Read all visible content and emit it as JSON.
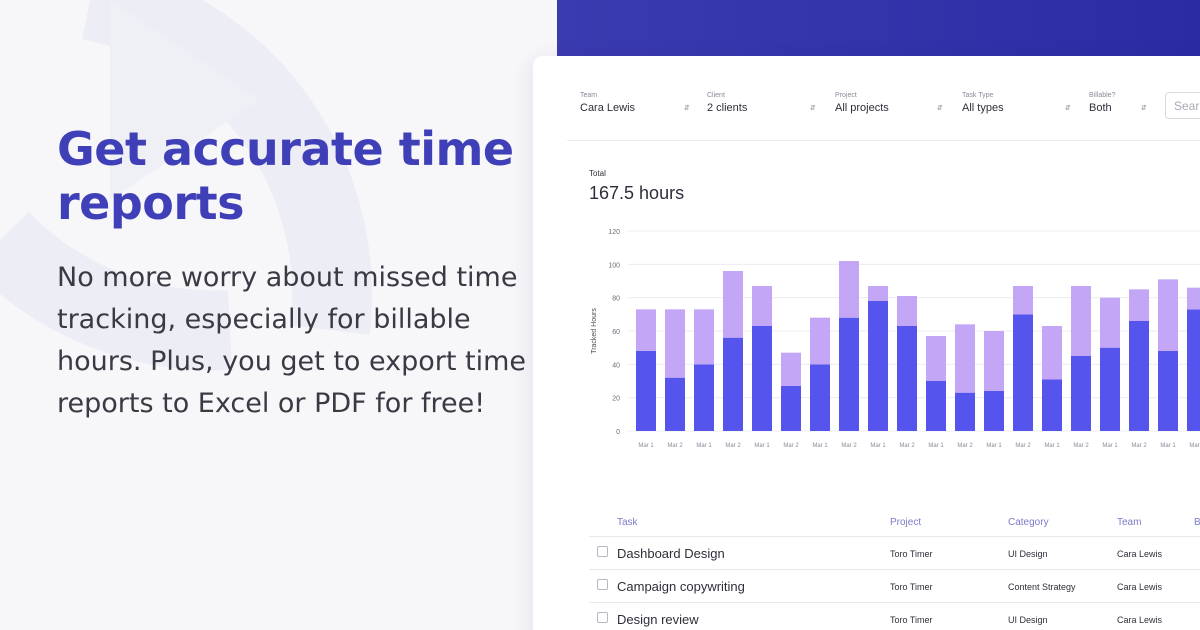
{
  "colors": {
    "accent": "#3f3fb8",
    "band": "#2f2fa8",
    "bar_billable": "#5555ee",
    "bar_nonbillable": "#c3a6f6"
  },
  "hero": {
    "headline": "Get accurate time reports",
    "subtext": "No more worry about missed time tracking, especially for billable hours. Plus, you get to export time reports to Excel or PDF for free!"
  },
  "filters": [
    {
      "label": "Team",
      "value": "Cara Lewis",
      "icon": "select-caret-icon"
    },
    {
      "label": "Client",
      "value": "2 clients",
      "icon": "select-caret-icon"
    },
    {
      "label": "Project",
      "value": "All projects",
      "icon": "select-caret-icon"
    },
    {
      "label": "Task Type",
      "value": "All types",
      "icon": "select-caret-icon"
    },
    {
      "label": "Billable?",
      "value": "Both",
      "icon": "select-caret-icon"
    }
  ],
  "search": {
    "placeholder": "Sear"
  },
  "summary": {
    "label": "Total",
    "value": "167.5 hours"
  },
  "chart_data": {
    "type": "bar",
    "stacked": true,
    "ylabel": "Tracked Hours",
    "xlabel": "",
    "ylim": [
      0,
      120
    ],
    "yticks": [
      0,
      20,
      40,
      60,
      80,
      100,
      120
    ],
    "grid": true,
    "categories": [
      "Mar 1",
      "Mar 2",
      "Mar 1",
      "Mar 2",
      "Mar 1",
      "Mar 2",
      "Mar 1",
      "Mar 2",
      "Mar 1",
      "Mar 2",
      "Mar 1",
      "Mar 2",
      "Mar 1",
      "Mar 2",
      "Mar 1",
      "Mar 2",
      "Mar 1",
      "Mar 2",
      "Mar 1",
      "Mar 2"
    ],
    "series": [
      {
        "color": "#5555ee",
        "values": [
          48,
          32,
          40,
          56,
          63,
          27,
          40,
          68,
          78,
          63,
          30,
          23,
          24,
          70,
          31,
          45,
          50,
          66,
          48,
          73
        ]
      },
      {
        "color": "#c3a6f6",
        "values": [
          25,
          41,
          33,
          40,
          24,
          20,
          28,
          34,
          9,
          18,
          27,
          41,
          36,
          17,
          32,
          42,
          30,
          19,
          43,
          13
        ]
      }
    ]
  },
  "table": {
    "headers": {
      "task": "Task",
      "project": "Project",
      "category": "Category",
      "team": "Team",
      "extra": "B"
    },
    "rows": [
      {
        "task": "Dashboard Design",
        "project": "Toro Timer",
        "category": "UI Design",
        "team": "Cara Lewis"
      },
      {
        "task": "Campaign copywriting",
        "project": "Toro Timer",
        "category": "Content Strategy",
        "team": "Cara Lewis"
      },
      {
        "task": "Design review",
        "project": "Toro Timer",
        "category": "UI Design",
        "team": "Cara Lewis"
      }
    ]
  }
}
